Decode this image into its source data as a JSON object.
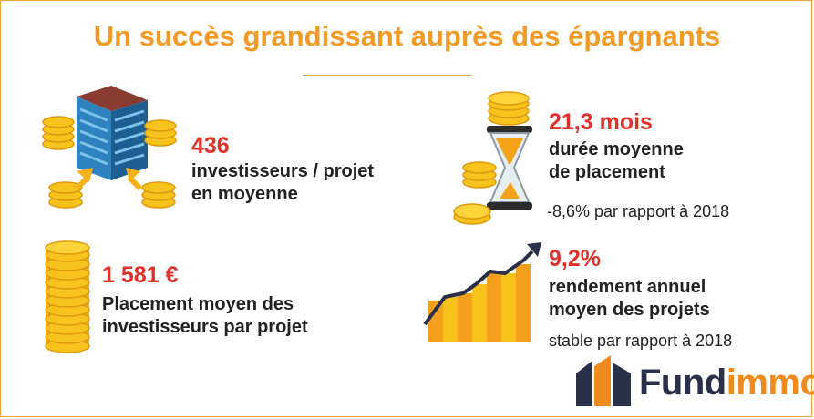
{
  "title": "Un succès grandissant auprès des épargnants",
  "stats": {
    "investors": {
      "value": "436",
      "line1": "investisseurs / projet",
      "line2": "en moyenne"
    },
    "placement": {
      "value": "1 581 €",
      "line1": "Placement moyen des",
      "line2": "investisseurs par projet"
    },
    "duration": {
      "value": "21,3 mois",
      "line1": "durée moyenne",
      "line2": "de placement",
      "note": "-8,6% par rapport à 2018"
    },
    "yield": {
      "value": "9,2%",
      "line1": "rendement annuel",
      "line2": "moyen des projets",
      "note": "stable par rapport à 2018"
    }
  },
  "logo": {
    "part1": "Fund",
    "part2": "immo"
  },
  "colors": {
    "accent": "#f29a26",
    "highlight": "#e2312a",
    "coin": "#f7c21b",
    "navy": "#2a2f4a"
  },
  "icons": [
    "building-coins-icon",
    "hourglass-coins-icon",
    "coin-stack-icon",
    "growth-chart-icon",
    "fundimmo-logo-icon"
  ]
}
